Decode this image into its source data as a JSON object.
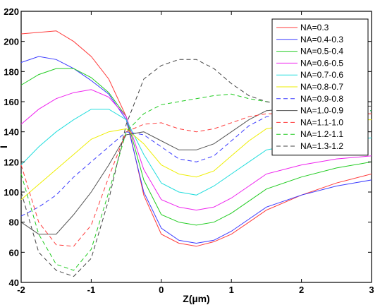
{
  "chart_data": {
    "type": "line",
    "title": "",
    "xlabel": "Z(µm)",
    "ylabel": "I",
    "xlim": [
      -2,
      3
    ],
    "ylim": [
      40,
      220
    ],
    "xticks": [
      -2,
      -1,
      0,
      1,
      2,
      3
    ],
    "yticks": [
      40,
      60,
      80,
      100,
      120,
      140,
      160,
      180,
      200,
      220
    ],
    "grid": false,
    "legend_position": "top-right",
    "x": [
      -2.0,
      -1.75,
      -1.5,
      -1.25,
      -1.0,
      -0.75,
      -0.5,
      -0.25,
      0.0,
      0.25,
      0.5,
      0.75,
      1.0,
      1.25,
      1.5,
      2.0,
      2.5,
      3.0
    ],
    "series": [
      {
        "name": "NA=0.3",
        "color": "#ff3b3b",
        "dash": false,
        "values": [
          205,
          206,
          207,
          200,
          190,
          175,
          150,
          98,
          72,
          66,
          64,
          67,
          72,
          80,
          88,
          98,
          106,
          112
        ]
      },
      {
        "name": "NA=0.4-0.3",
        "color": "#3b3bff",
        "dash": false,
        "values": [
          186,
          190,
          188,
          182,
          174,
          165,
          148,
          100,
          76,
          68,
          66,
          68,
          74,
          82,
          90,
          98,
          104,
          108
        ]
      },
      {
        "name": "NA=0.5-0.4",
        "color": "#22cc22",
        "dash": false,
        "values": [
          171,
          178,
          182,
          182,
          176,
          166,
          150,
          108,
          85,
          80,
          78,
          80,
          86,
          94,
          102,
          110,
          116,
          120
        ]
      },
      {
        "name": "NA=0.6-0.5",
        "color": "#ee22ee",
        "dash": false,
        "values": [
          145,
          155,
          162,
          166,
          168,
          163,
          150,
          115,
          95,
          90,
          88,
          90,
          96,
          104,
          112,
          118,
          122,
          124
        ]
      },
      {
        "name": "NA=0.7-0.6",
        "color": "#22dddd",
        "dash": false,
        "values": [
          118,
          130,
          140,
          148,
          155,
          155,
          148,
          125,
          106,
          100,
          98,
          104,
          112,
          120,
          128,
          132,
          134,
          136
        ]
      },
      {
        "name": "NA=0.8-0.7",
        "color": "#eeee00",
        "dash": false,
        "values": [
          95,
          105,
          115,
          125,
          135,
          140,
          142,
          132,
          118,
          112,
          110,
          114,
          124,
          134,
          142,
          146,
          148,
          148
        ]
      },
      {
        "name": "NA=0.9-0.8",
        "color": "#3b3bff",
        "dash": true,
        "values": [
          84,
          90,
          98,
          110,
          120,
          130,
          140,
          138,
          130,
          122,
          120,
          124,
          134,
          144,
          150,
          153,
          154,
          154
        ]
      },
      {
        "name": "NA=1.0-0.9",
        "color": "#555555",
        "dash": false,
        "values": [
          80,
          72,
          72,
          85,
          100,
          118,
          138,
          140,
          134,
          128,
          128,
          132,
          140,
          148,
          154,
          156,
          157,
          157
        ]
      },
      {
        "name": "NA=1.1-1.0",
        "color": "#ff3b3b",
        "dash": true,
        "values": [
          118,
          80,
          65,
          64,
          78,
          110,
          140,
          145,
          146,
          142,
          140,
          142,
          146,
          150,
          152,
          152,
          152,
          152
        ]
      },
      {
        "name": "NA=1.2-1.1",
        "color": "#22cc22",
        "dash": true,
        "values": [
          112,
          72,
          52,
          48,
          62,
          100,
          140,
          152,
          158,
          160,
          162,
          164,
          165,
          162,
          160,
          157,
          155,
          154
        ]
      },
      {
        "name": "NA=1.3-1.2",
        "color": "#444444",
        "dash": true,
        "values": [
          100,
          60,
          48,
          44,
          56,
          95,
          145,
          175,
          184,
          188,
          188,
          182,
          172,
          164,
          160,
          156,
          154,
          153
        ]
      }
    ]
  }
}
